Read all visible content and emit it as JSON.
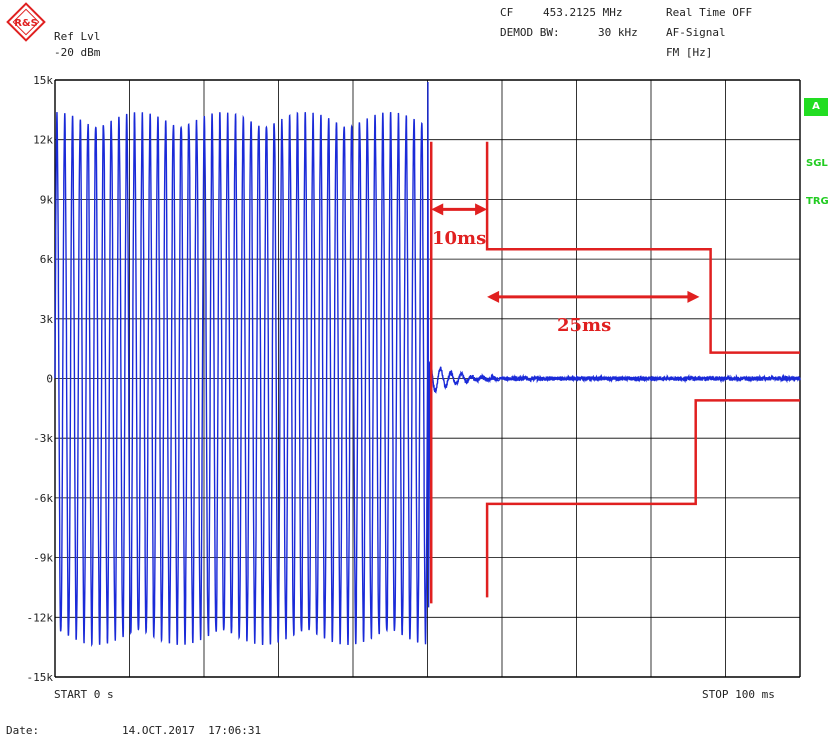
{
  "header": {
    "logo_text": "R&S",
    "ref_lvl_label": "Ref Lvl",
    "ref_lvl_value": "-20 dBm",
    "cf_label": "CF",
    "cf_value": "453.2125 MHz",
    "realtime": "Real Time OFF",
    "demod_bw_label": "DEMOD BW:",
    "demod_bw_value": "30 kHz",
    "af_signal": "AF-Signal",
    "fm_unit": "FM [Hz]"
  },
  "side": {
    "a": "A",
    "sgl": "SGL",
    "trg": "TRG"
  },
  "footer": {
    "start": "START 0 s",
    "stop": "STOP 100 ms",
    "date_label": "Date:",
    "date_value": "14.OCT.2017  17:06:31"
  },
  "colors": {
    "trace": "#1a2ad8",
    "annotation": "#e02020",
    "grid": "#000000",
    "badge": "#22dd22"
  },
  "chart_data": {
    "type": "line",
    "title": "",
    "xlabel": "",
    "ylabel": "",
    "xlim": [
      0,
      100
    ],
    "ylim": [
      -15000,
      15000
    ],
    "grid": true,
    "y_ticks": [
      "15k",
      "12k",
      "9k",
      "6k",
      "3k",
      "0",
      "-3k",
      "-6k",
      "-9k",
      "-12k",
      "-15k"
    ],
    "series": [
      {
        "oscillation_amplitude": 13000,
        "oscillation_end_ms": 50,
        "settled_value": 0
      }
    ],
    "annotations": {
      "ten_ms_label": "10ms",
      "twentyfive_ms_label": "25ms",
      "mask_upper": [
        [
          50,
          11900
        ],
        [
          58,
          11900
        ],
        [
          58,
          6500
        ],
        [
          88,
          6500
        ],
        [
          88,
          1300
        ],
        [
          100,
          1300
        ]
      ],
      "mask_lower": [
        [
          50,
          -11300
        ],
        [
          58,
          -11000
        ],
        [
          58,
          -6300
        ],
        [
          86,
          -6300
        ],
        [
          86,
          -1100
        ],
        [
          100,
          -1100
        ]
      ]
    }
  }
}
